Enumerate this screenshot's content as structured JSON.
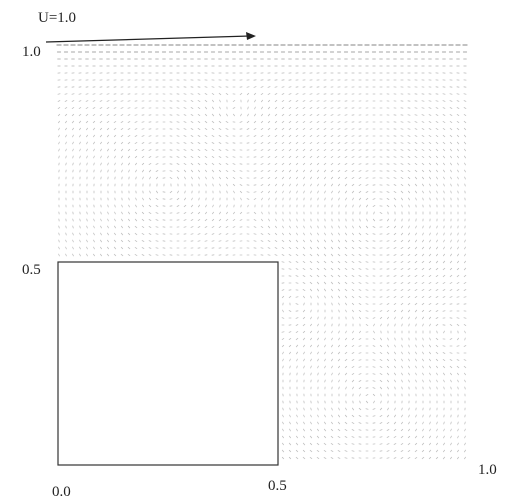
{
  "lid_velocity_label": "U=1.0",
  "y_axis": {
    "top": "1.0",
    "middle": "0.5"
  },
  "x_axis": {
    "left": "0.0",
    "middle": "0.5",
    "right": "1.0"
  }
}
